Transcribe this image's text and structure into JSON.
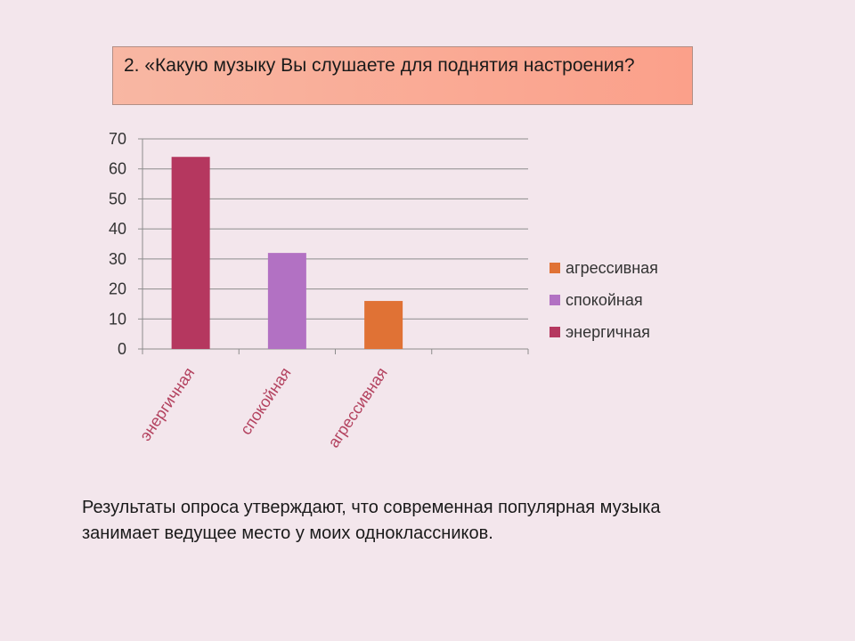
{
  "slide": {
    "title": "2. «Какую музыку Вы слушаете для поднятия настроения?",
    "caption": "Результаты опроса утверждают, что современная популярная музыка занимает ведущее место у моих одноклассников."
  },
  "chart_data": {
    "type": "bar",
    "categories": [
      "энергичная",
      "спокойная",
      "агрессивная"
    ],
    "values": [
      64,
      32,
      16
    ],
    "colors": [
      "#b5375f",
      "#b271c3",
      "#e07235"
    ],
    "ylim": [
      0,
      70
    ],
    "yticks": [
      0,
      10,
      20,
      30,
      40,
      50,
      60,
      70
    ],
    "grid": true,
    "legend_position": "right",
    "legend": [
      {
        "label": "агрессивная",
        "color": "#e07235"
      },
      {
        "label": "спокойная",
        "color": "#b271c3"
      },
      {
        "label": "энергичная",
        "color": "#b5375f"
      }
    ],
    "title": "",
    "xlabel": "",
    "ylabel": ""
  }
}
